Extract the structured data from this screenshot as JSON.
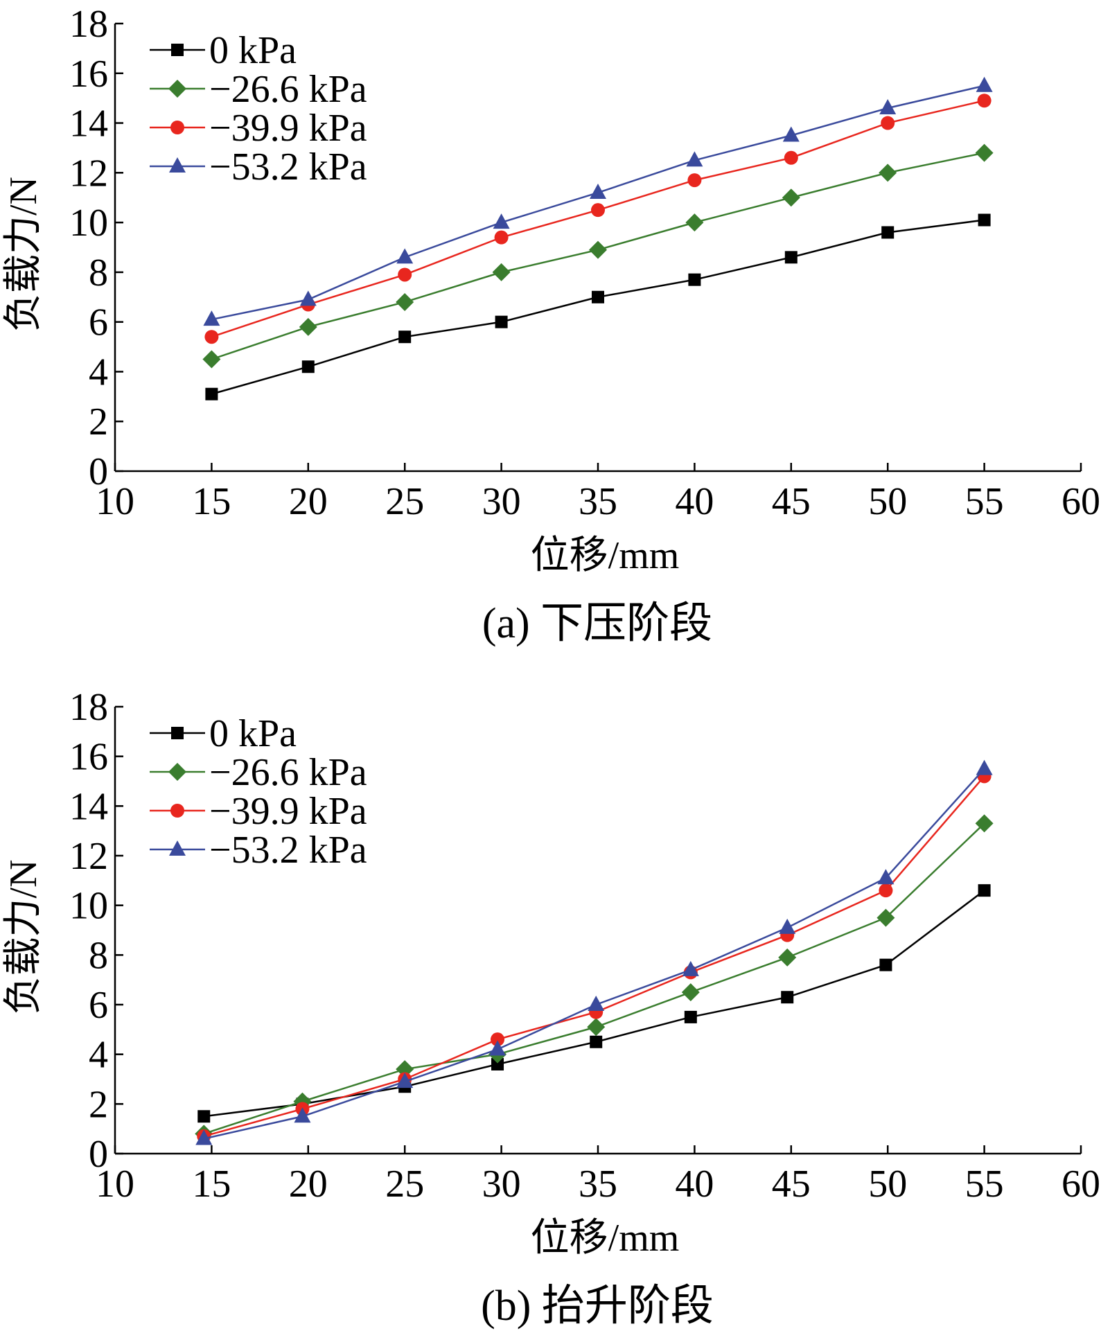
{
  "chart_data": [
    {
      "type": "line",
      "panel": "a",
      "caption": "(a)  下压阶段",
      "xlabel": "位移/mm",
      "ylabel": "负载力/N",
      "xlim": [
        10,
        60
      ],
      "ylim": [
        0,
        18
      ],
      "x_ticks": [
        10,
        15,
        20,
        25,
        30,
        35,
        40,
        45,
        50,
        55,
        60
      ],
      "y_ticks": [
        0,
        2,
        4,
        6,
        8,
        10,
        12,
        14,
        16,
        18
      ],
      "grid": false,
      "legend_position": "top-left",
      "series": [
        {
          "name": "0 kPa",
          "color": "#000000",
          "marker": "square",
          "x": [
            15,
            20,
            25,
            30,
            35,
            40,
            45,
            50,
            55
          ],
          "y": [
            3.1,
            4.2,
            5.4,
            6.0,
            7.0,
            7.7,
            8.6,
            9.6,
            10.1
          ]
        },
        {
          "name": "−26.6 kPa",
          "color": "#3a7d2e",
          "marker": "diamond",
          "x": [
            15,
            20,
            25,
            30,
            35,
            40,
            45,
            50,
            55
          ],
          "y": [
            4.5,
            5.8,
            6.8,
            8.0,
            8.9,
            10.0,
            11.0,
            12.0,
            12.8
          ]
        },
        {
          "name": "−39.9 kPa",
          "color": "#e8261e",
          "marker": "circle",
          "x": [
            15,
            20,
            25,
            30,
            35,
            40,
            45,
            50,
            55
          ],
          "y": [
            5.4,
            6.7,
            7.9,
            9.4,
            10.5,
            11.7,
            12.6,
            14.0,
            14.9
          ]
        },
        {
          "name": "−53.2 kPa",
          "color": "#3a4a9c",
          "marker": "triangle",
          "x": [
            15,
            20,
            25,
            30,
            35,
            40,
            45,
            50,
            55
          ],
          "y": [
            6.1,
            6.9,
            8.6,
            10.0,
            11.2,
            12.5,
            13.5,
            14.6,
            15.5
          ]
        }
      ]
    },
    {
      "type": "line",
      "panel": "b",
      "caption": "(b)  抬升阶段",
      "xlabel": "位移/mm",
      "ylabel": "负载力/N",
      "xlim": [
        10,
        60
      ],
      "ylim": [
        0,
        18
      ],
      "x_ticks": [
        10,
        15,
        20,
        25,
        30,
        35,
        40,
        45,
        50,
        55,
        60
      ],
      "y_ticks": [
        0,
        2,
        4,
        6,
        8,
        10,
        12,
        14,
        16,
        18
      ],
      "grid": false,
      "legend_position": "top-left",
      "series": [
        {
          "name": "0 kPa",
          "color": "#000000",
          "marker": "square",
          "x": [
            14.6,
            19.7,
            25,
            29.8,
            34.9,
            39.8,
            44.8,
            49.9,
            55
          ],
          "y": [
            1.5,
            2.0,
            2.7,
            3.6,
            4.5,
            5.5,
            6.3,
            7.6,
            10.6
          ]
        },
        {
          "name": "−26.6 kPa",
          "color": "#3a7d2e",
          "marker": "diamond",
          "x": [
            14.6,
            19.7,
            25,
            29.8,
            34.9,
            39.8,
            44.8,
            49.9,
            55
          ],
          "y": [
            0.8,
            2.1,
            3.4,
            4.0,
            5.1,
            6.5,
            7.9,
            9.5,
            13.3
          ]
        },
        {
          "name": "−39.9 kPa",
          "color": "#e8261e",
          "marker": "circle",
          "x": [
            14.6,
            19.7,
            25,
            29.8,
            34.9,
            39.8,
            44.8,
            49.9,
            55
          ],
          "y": [
            0.7,
            1.8,
            3.0,
            4.6,
            5.7,
            7.3,
            8.8,
            10.6,
            15.2
          ]
        },
        {
          "name": "−53.2 kPa",
          "color": "#3a4a9c",
          "marker": "triangle",
          "x": [
            14.6,
            19.7,
            25,
            29.8,
            34.9,
            39.8,
            44.8,
            49.9,
            55
          ],
          "y": [
            0.6,
            1.5,
            2.9,
            4.2,
            6.0,
            7.4,
            9.1,
            11.1,
            15.5
          ]
        }
      ]
    }
  ]
}
